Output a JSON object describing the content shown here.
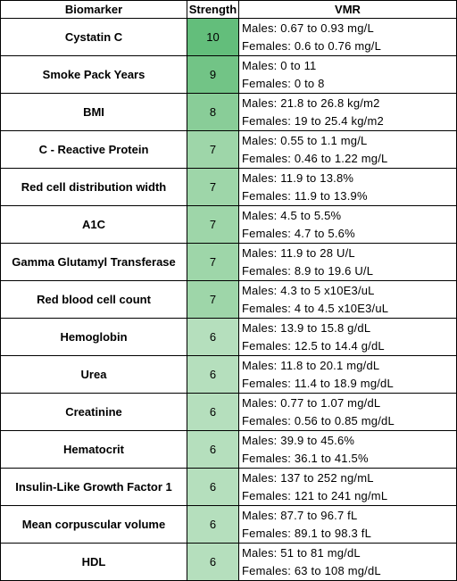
{
  "headers": {
    "biomarker": "Biomarker",
    "strength": "Strength",
    "vmr": "VMR"
  },
  "strength_colors": {
    "10": "#63be7b",
    "9": "#72c486",
    "8": "#89cd98",
    "7": "#9ed6a9",
    "6": "#b5dfbd"
  },
  "rows": [
    {
      "biomarker": "Cystatin C",
      "strength": "10",
      "males": "Males: 0.67 to 0.93 mg/L",
      "females": "Females: 0.6 to 0.76 mg/L"
    },
    {
      "biomarker": "Smoke Pack Years",
      "strength": "9",
      "males": "Males: 0 to 11",
      "females": "Females: 0 to 8"
    },
    {
      "biomarker": "BMI",
      "strength": "8",
      "males": "Males: 21.8 to 26.8 kg/m2",
      "females": "Females: 19 to 25.4 kg/m2"
    },
    {
      "biomarker": "C - Reactive Protein",
      "strength": "7",
      "males": "Males: 0.55 to 1.1 mg/L",
      "females": "Females: 0.46 to 1.22 mg/L"
    },
    {
      "biomarker": "Red cell distribution width",
      "strength": "7",
      "males": "Males: 11.9 to 13.8%",
      "females": "Females: 11.9 to 13.9%"
    },
    {
      "biomarker": "A1C",
      "strength": "7",
      "males": "Males: 4.5 to 5.5%",
      "females": "Females: 4.7 to 5.6%"
    },
    {
      "biomarker": "Gamma Glutamyl Transferase",
      "strength": "7",
      "males": "Males: 11.9 to 28 U/L",
      "females": "Females: 8.9 to 19.6 U/L"
    },
    {
      "biomarker": "Red blood cell count",
      "strength": "7",
      "males": "Males: 4.3 to 5 x10E3/uL",
      "females": "Females: 4 to 4.5 x10E3/uL"
    },
    {
      "biomarker": "Hemoglobin",
      "strength": "6",
      "males": "Males: 13.9 to 15.8 g/dL",
      "females": "Females: 12.5 to 14.4 g/dL"
    },
    {
      "biomarker": "Urea",
      "strength": "6",
      "males": "Males: 11.8 to 20.1 mg/dL",
      "females": "Females: 11.4 to 18.9 mg/dL"
    },
    {
      "biomarker": "Creatinine",
      "strength": "6",
      "males": "Males: 0.77 to 1.07 mg/dL",
      "females": "Females: 0.56 to 0.85 mg/dL"
    },
    {
      "biomarker": "Hematocrit",
      "strength": "6",
      "males": "Males: 39.9 to 45.6%",
      "females": "Females: 36.1 to 41.5%"
    },
    {
      "biomarker": "Insulin-Like Growth Factor 1",
      "strength": "6",
      "males": "Males: 137 to 252 ng/mL",
      "females": "Females: 121 to 241 ng/mL"
    },
    {
      "biomarker": "Mean corpuscular volume",
      "strength": "6",
      "males": "Males: 87.7 to 96.7 fL",
      "females": "Females: 89.1 to 98.3 fL"
    },
    {
      "biomarker": "HDL",
      "strength": "6",
      "males": "Males: 51 to 81 mg/dL",
      "females": "Females: 63 to 108 mg/dL"
    }
  ]
}
